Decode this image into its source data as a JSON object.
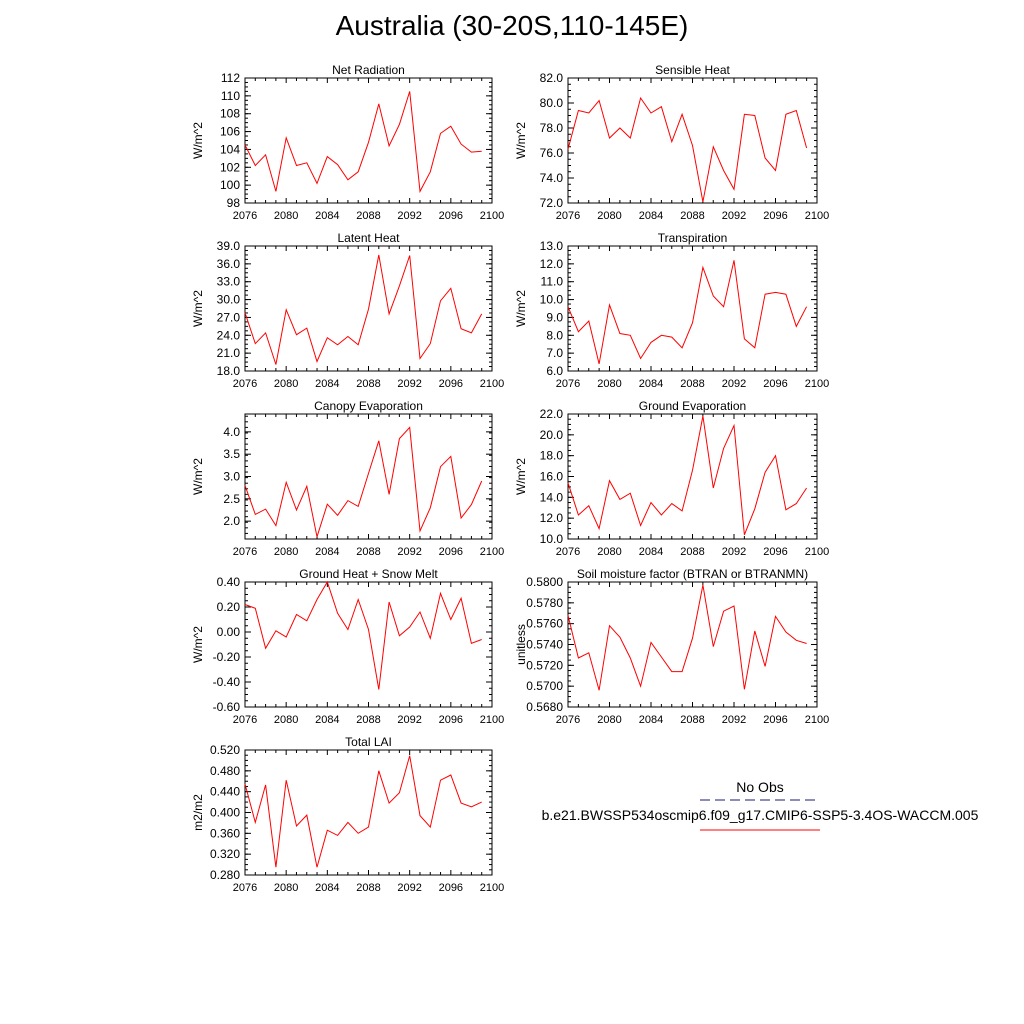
{
  "title": "Australia (30-20S,110-145E)",
  "legend": {
    "obs_label": "No Obs",
    "obs_color": "#1a1a7a",
    "model_label": "b.e21.BWSSP534oscmip6.f09_g17.CMIP6-SSP5-3.4OS-WACCM.005",
    "model_color": "#ff0000"
  },
  "chart_data": [
    {
      "type": "line",
      "title": "Net Radiation",
      "ylabel": "W/m^2",
      "xlim": [
        2076,
        2100
      ],
      "xticks": [
        "2076",
        "2080",
        "2084",
        "2088",
        "2092",
        "2096",
        "2100"
      ],
      "ylim": [
        98,
        112
      ],
      "yticks": [
        "98",
        "100",
        "102",
        "104",
        "106",
        "108",
        "110",
        "112"
      ],
      "x": [
        2076,
        2077,
        2078,
        2079,
        2080,
        2081,
        2082,
        2083,
        2084,
        2085,
        2086,
        2087,
        2088,
        2089,
        2090,
        2091,
        2092,
        2093,
        2094,
        2095,
        2096,
        2097,
        2098,
        2099
      ],
      "values": [
        104.5,
        102.2,
        103.4,
        99.3,
        105.3,
        102.2,
        102.5,
        100.2,
        103.2,
        102.3,
        100.6,
        101.5,
        104.8,
        109.1,
        104.4,
        106.8,
        110.5,
        99.3,
        101.5,
        105.8,
        106.6,
        104.6,
        103.7,
        103.8
      ]
    },
    {
      "type": "line",
      "title": "Sensible Heat",
      "ylabel": "W/m^2",
      "xlim": [
        2076,
        2100
      ],
      "xticks": [
        "2076",
        "2080",
        "2084",
        "2088",
        "2092",
        "2096",
        "2100"
      ],
      "ylim": [
        72.0,
        82.0
      ],
      "yticks": [
        "72.0",
        "74.0",
        "76.0",
        "78.0",
        "80.0",
        "82.0"
      ],
      "x": [
        2076,
        2077,
        2078,
        2079,
        2080,
        2081,
        2082,
        2083,
        2084,
        2085,
        2086,
        2087,
        2088,
        2089,
        2090,
        2091,
        2092,
        2093,
        2094,
        2095,
        2096,
        2097,
        2098,
        2099
      ],
      "values": [
        76.3,
        79.4,
        79.2,
        80.2,
        77.2,
        78.0,
        77.2,
        80.4,
        79.2,
        79.7,
        76.9,
        79.1,
        76.6,
        72.1,
        76.5,
        74.6,
        73.1,
        79.1,
        79.0,
        75.6,
        74.6,
        79.1,
        79.4,
        76.4
      ]
    },
    {
      "type": "line",
      "title": "Latent Heat",
      "ylabel": "W/m^2",
      "xlim": [
        2076,
        2100
      ],
      "xticks": [
        "2076",
        "2080",
        "2084",
        "2088",
        "2092",
        "2096",
        "2100"
      ],
      "ylim": [
        18.0,
        39.0
      ],
      "yticks": [
        "18.0",
        "21.0",
        "24.0",
        "27.0",
        "30.0",
        "33.0",
        "36.0",
        "39.0"
      ],
      "x": [
        2076,
        2077,
        2078,
        2079,
        2080,
        2081,
        2082,
        2083,
        2084,
        2085,
        2086,
        2087,
        2088,
        2089,
        2090,
        2091,
        2092,
        2093,
        2094,
        2095,
        2096,
        2097,
        2098,
        2099
      ],
      "values": [
        27.8,
        22.6,
        24.4,
        19.1,
        28.3,
        24.1,
        25.2,
        19.6,
        23.6,
        22.4,
        23.8,
        22.4,
        28.4,
        37.5,
        27.6,
        32.3,
        37.4,
        20.1,
        22.6,
        29.8,
        31.9,
        25.1,
        24.4,
        27.6
      ]
    },
    {
      "type": "line",
      "title": "Transpiration",
      "ylabel": "W/m^2",
      "xlim": [
        2076,
        2100
      ],
      "xticks": [
        "2076",
        "2080",
        "2084",
        "2088",
        "2092",
        "2096",
        "2100"
      ],
      "ylim": [
        6.0,
        13.0
      ],
      "yticks": [
        "6.0",
        "7.0",
        "8.0",
        "9.0",
        "10.0",
        "11.0",
        "12.0",
        "13.0"
      ],
      "x": [
        2076,
        2077,
        2078,
        2079,
        2080,
        2081,
        2082,
        2083,
        2084,
        2085,
        2086,
        2087,
        2088,
        2089,
        2090,
        2091,
        2092,
        2093,
        2094,
        2095,
        2096,
        2097,
        2098,
        2099
      ],
      "values": [
        9.6,
        8.2,
        8.8,
        6.4,
        9.7,
        8.1,
        8.0,
        6.7,
        7.6,
        8.0,
        7.9,
        7.3,
        8.7,
        11.8,
        10.2,
        9.6,
        12.2,
        7.8,
        7.3,
        10.3,
        10.4,
        10.3,
        8.5,
        9.6
      ]
    },
    {
      "type": "line",
      "title": "Canopy Evaporation",
      "ylabel": "W/m^2",
      "xlim": [
        2076,
        2100
      ],
      "xticks": [
        "2076",
        "2080",
        "2084",
        "2088",
        "2092",
        "2096",
        "2100"
      ],
      "ylim": [
        1.6,
        4.4
      ],
      "yticks": [
        "2.0",
        "2.5",
        "3.0",
        "3.5",
        "4.0"
      ],
      "x": [
        2076,
        2077,
        2078,
        2079,
        2080,
        2081,
        2082,
        2083,
        2084,
        2085,
        2086,
        2087,
        2088,
        2089,
        2090,
        2091,
        2092,
        2093,
        2094,
        2095,
        2096,
        2097,
        2098,
        2099
      ],
      "values": [
        2.8,
        2.15,
        2.27,
        1.9,
        2.87,
        2.25,
        2.78,
        1.65,
        2.38,
        2.13,
        2.46,
        2.33,
        3.07,
        3.8,
        2.6,
        3.85,
        4.1,
        1.78,
        2.3,
        3.22,
        3.45,
        2.07,
        2.37,
        2.9
      ]
    },
    {
      "type": "line",
      "title": "Ground Evaporation",
      "ylabel": "W/m^2",
      "xlim": [
        2076,
        2100
      ],
      "xticks": [
        "2076",
        "2080",
        "2084",
        "2088",
        "2092",
        "2096",
        "2100"
      ],
      "ylim": [
        10.0,
        22.0
      ],
      "yticks": [
        "10.0",
        "12.0",
        "14.0",
        "16.0",
        "18.0",
        "20.0",
        "22.0"
      ],
      "x": [
        2076,
        2077,
        2078,
        2079,
        2080,
        2081,
        2082,
        2083,
        2084,
        2085,
        2086,
        2087,
        2088,
        2089,
        2090,
        2091,
        2092,
        2093,
        2094,
        2095,
        2096,
        2097,
        2098,
        2099
      ],
      "values": [
        15.4,
        12.3,
        13.2,
        11.0,
        15.6,
        13.8,
        14.4,
        11.3,
        13.5,
        12.3,
        13.4,
        12.7,
        16.6,
        21.8,
        14.9,
        18.7,
        20.9,
        10.4,
        12.9,
        16.4,
        18.0,
        12.8,
        13.4,
        14.9
      ]
    },
    {
      "type": "line",
      "title": "Ground Heat + Snow Melt",
      "ylabel": "W/m^2",
      "xlim": [
        2076,
        2100
      ],
      "xticks": [
        "2076",
        "2080",
        "2084",
        "2088",
        "2092",
        "2096",
        "2100"
      ],
      "ylim": [
        -0.6,
        0.4
      ],
      "yticks": [
        "-0.60",
        "-0.40",
        "-0.20",
        "0.00",
        "0.20",
        "0.40"
      ],
      "x": [
        2076,
        2077,
        2078,
        2079,
        2080,
        2081,
        2082,
        2083,
        2084,
        2085,
        2086,
        2087,
        2088,
        2089,
        2090,
        2091,
        2092,
        2093,
        2094,
        2095,
        2096,
        2097,
        2098,
        2099
      ],
      "values": [
        0.22,
        0.19,
        -0.13,
        0.01,
        -0.04,
        0.14,
        0.09,
        0.26,
        0.4,
        0.15,
        0.02,
        0.26,
        0.02,
        -0.46,
        0.24,
        -0.03,
        0.04,
        0.16,
        -0.05,
        0.31,
        0.1,
        0.27,
        -0.09,
        -0.06
      ]
    },
    {
      "type": "line",
      "title": "Soil moisture factor (BTRAN or BTRANMN)",
      "ylabel": "unitless",
      "xlim": [
        2076,
        2100
      ],
      "xticks": [
        "2076",
        "2080",
        "2084",
        "2088",
        "2092",
        "2096",
        "2100"
      ],
      "ylim": [
        0.568,
        0.58
      ],
      "yticks": [
        "0.5680",
        "0.5700",
        "0.5720",
        "0.5740",
        "0.5760",
        "0.5780",
        "0.5800"
      ],
      "x": [
        2076,
        2077,
        2078,
        2079,
        2080,
        2081,
        2082,
        2083,
        2084,
        2085,
        2086,
        2087,
        2088,
        2089,
        2090,
        2091,
        2092,
        2093,
        2094,
        2095,
        2096,
        2097,
        2098,
        2099
      ],
      "values": [
        0.5768,
        0.5727,
        0.5732,
        0.5696,
        0.5758,
        0.5747,
        0.5727,
        0.57,
        0.5742,
        0.5728,
        0.5714,
        0.5714,
        0.5746,
        0.5797,
        0.5738,
        0.5772,
        0.5777,
        0.5697,
        0.5753,
        0.5719,
        0.5767,
        0.5752,
        0.5744,
        0.5741
      ]
    },
    {
      "type": "line",
      "title": "Total LAI",
      "ylabel": "m2/m2",
      "xlim": [
        2076,
        2100
      ],
      "xticks": [
        "2076",
        "2080",
        "2084",
        "2088",
        "2092",
        "2096",
        "2100"
      ],
      "ylim": [
        0.28,
        0.52
      ],
      "yticks": [
        "0.280",
        "0.320",
        "0.360",
        "0.400",
        "0.440",
        "0.480",
        "0.520"
      ],
      "x": [
        2076,
        2077,
        2078,
        2079,
        2080,
        2081,
        2082,
        2083,
        2084,
        2085,
        2086,
        2087,
        2088,
        2089,
        2090,
        2091,
        2092,
        2093,
        2094,
        2095,
        2096,
        2097,
        2098,
        2099
      ],
      "values": [
        0.455,
        0.381,
        0.453,
        0.295,
        0.462,
        0.374,
        0.395,
        0.295,
        0.366,
        0.356,
        0.381,
        0.36,
        0.372,
        0.48,
        0.418,
        0.438,
        0.509,
        0.394,
        0.372,
        0.462,
        0.472,
        0.418,
        0.411,
        0.42
      ]
    }
  ]
}
